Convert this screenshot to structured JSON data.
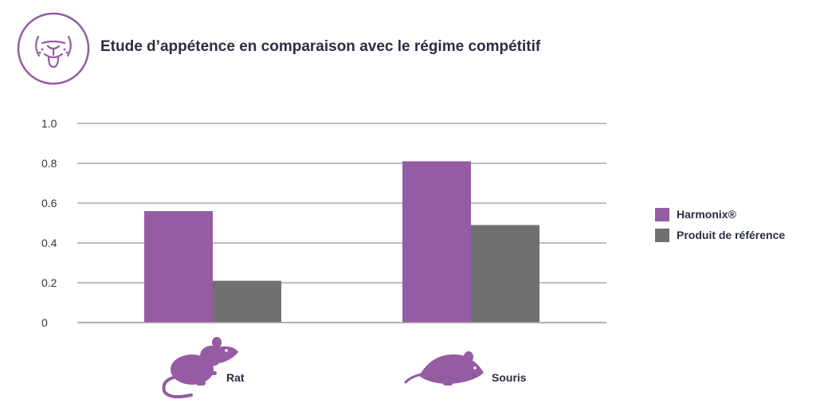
{
  "header": {
    "title": "Etude d’appétence en comparaison avec le régime compétitif",
    "logo_icon": "animal-face-icon"
  },
  "colors": {
    "accent": "#955ba3",
    "reference": "#707070",
    "grid": "#a8a8a8",
    "text": "#2b2d42"
  },
  "chart_data": {
    "type": "bar",
    "title": "Etude d’appétence en comparaison avec le régime compétitif",
    "xlabel": "",
    "ylabel": "",
    "categories": [
      "Rat",
      "Souris"
    ],
    "category_icons": [
      "rat-icon",
      "mouse-icon"
    ],
    "series": [
      {
        "name": "Harmonix®",
        "values": [
          0.56,
          0.81
        ],
        "color": "#955ba3"
      },
      {
        "name": "Produit de référence",
        "values": [
          0.21,
          0.49
        ],
        "color": "#707070"
      }
    ],
    "ylim": [
      0,
      1.0
    ],
    "yticks": [
      "0",
      "0.2",
      "0.4",
      "0.6",
      "0.8",
      "1.0"
    ],
    "grid": true,
    "legend_position": "right"
  }
}
